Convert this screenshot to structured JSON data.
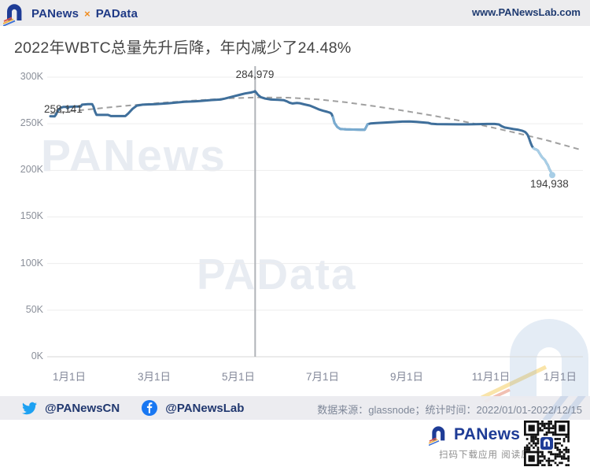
{
  "header": {
    "brand": {
      "primary": "PANews",
      "separator": "×",
      "secondary": "PAData"
    },
    "url": "www.PANewsLab.com"
  },
  "main": {
    "title": "2022年WBTC总量先升后降，年内减少了24.48%"
  },
  "watermarks": {
    "text1": "PANews",
    "text2": "PAData"
  },
  "chart_data": {
    "type": "line",
    "title": "2022年WBTC总量先升后降，年内减少了24.48%",
    "unit": "K WBTC",
    "ylim": [
      0,
      300
    ],
    "grid": true,
    "x_tick_labels": [
      "1月1日",
      "3月1日",
      "5月1日",
      "7月1日",
      "9月1日",
      "11月1日",
      "1月1日"
    ],
    "y_ticks": [
      {
        "label": "300K",
        "value": 300
      },
      {
        "label": "250K",
        "value": 250
      },
      {
        "label": "200K",
        "value": 200
      },
      {
        "label": "150K",
        "value": 150
      },
      {
        "label": "100K",
        "value": 100
      },
      {
        "label": "50K",
        "value": 50
      },
      {
        "label": "0K",
        "value": 0
      }
    ],
    "annotations": [
      {
        "id": "start",
        "label": "258,141",
        "value": 258141
      },
      {
        "id": "peak",
        "label": "284,979",
        "value": 284979
      },
      {
        "id": "end",
        "label": "194,938",
        "value": 194938
      }
    ],
    "marker_day": 142,
    "series": [
      {
        "name": "WBTC总量",
        "x_unit": "day-of-year-2022",
        "points": [
          [
            0,
            258.1
          ],
          [
            3,
            258
          ],
          [
            4,
            260
          ],
          [
            5,
            263.5
          ],
          [
            7,
            267
          ],
          [
            9,
            268
          ],
          [
            11,
            268
          ],
          [
            12,
            266.5
          ],
          [
            13,
            268
          ],
          [
            17,
            268.5
          ],
          [
            21,
            268.5
          ],
          [
            22,
            270.5
          ],
          [
            26,
            271
          ],
          [
            29,
            271
          ],
          [
            30,
            268
          ],
          [
            31,
            263
          ],
          [
            32,
            259.5
          ],
          [
            40,
            259.5
          ],
          [
            42,
            258.2
          ],
          [
            52,
            258.2
          ],
          [
            54,
            261
          ],
          [
            57,
            266
          ],
          [
            60,
            269.5
          ],
          [
            64,
            270.5
          ],
          [
            73,
            271
          ],
          [
            82,
            272
          ],
          [
            93,
            273.5
          ],
          [
            100,
            274
          ],
          [
            104,
            274.5
          ],
          [
            112,
            275.5
          ],
          [
            118,
            276
          ],
          [
            121,
            277
          ],
          [
            126,
            279
          ],
          [
            131,
            281
          ],
          [
            135,
            282.5
          ],
          [
            139,
            283.5
          ],
          [
            141,
            284.3
          ],
          [
            142,
            284.979
          ],
          [
            143,
            283
          ],
          [
            144,
            281
          ],
          [
            146,
            278.5
          ],
          [
            149,
            277
          ],
          [
            153,
            276
          ],
          [
            158,
            275.7
          ],
          [
            162,
            275.2
          ],
          [
            164,
            274
          ],
          [
            166,
            272.5
          ],
          [
            168,
            271.8
          ],
          [
            171,
            272.3
          ],
          [
            173,
            272
          ],
          [
            176,
            270.8
          ],
          [
            180,
            269.5
          ],
          [
            183,
            267.5
          ],
          [
            186,
            265.5
          ],
          [
            189,
            264
          ],
          [
            192,
            262.8
          ],
          [
            194,
            261.8
          ],
          [
            195,
            260.5
          ],
          [
            196,
            257
          ],
          [
            197,
            251
          ],
          [
            199,
            246.5
          ],
          [
            201,
            244.5
          ],
          [
            205,
            244
          ],
          [
            210,
            243.8
          ],
          [
            215,
            243.6
          ],
          [
            218,
            243.6
          ],
          [
            219,
            246.5
          ],
          [
            220,
            249.5
          ],
          [
            222,
            250.3
          ],
          [
            226,
            250.8
          ],
          [
            232,
            251.3
          ],
          [
            238,
            251.8
          ],
          [
            244,
            252.3
          ],
          [
            249,
            252.4
          ],
          [
            254,
            252
          ],
          [
            257,
            251.6
          ],
          [
            262,
            251
          ],
          [
            264,
            250
          ],
          [
            268,
            249.6
          ],
          [
            275,
            249.5
          ],
          [
            283,
            249.4
          ],
          [
            290,
            249.4
          ],
          [
            297,
            249.6
          ],
          [
            303,
            249.8
          ],
          [
            308,
            249.8
          ],
          [
            311,
            249.3
          ],
          [
            313,
            247.3
          ],
          [
            315,
            246
          ],
          [
            318,
            245.2
          ],
          [
            321,
            244.3
          ],
          [
            324,
            243.7
          ],
          [
            327,
            242.6
          ],
          [
            329,
            241.3
          ],
          [
            330,
            240
          ],
          [
            331,
            238
          ],
          [
            332,
            234
          ],
          [
            333,
            229.5
          ],
          [
            334,
            226
          ],
          [
            335,
            223.8
          ],
          [
            336,
            222.8
          ],
          [
            337,
            222.3
          ],
          [
            338,
            221.3
          ],
          [
            339,
            218.8
          ],
          [
            340,
            216.3
          ],
          [
            341,
            214
          ],
          [
            342,
            212.5
          ],
          [
            343,
            211
          ],
          [
            344,
            208
          ],
          [
            345,
            205.5
          ],
          [
            346,
            201.5
          ],
          [
            347,
            198.5
          ],
          [
            348,
            194.938
          ]
        ]
      }
    ],
    "trend_line": {
      "style": "dashed",
      "points": [
        [
          0,
          261
        ],
        [
          25,
          265.2
        ],
        [
          50,
          269
        ],
        [
          75,
          272.3
        ],
        [
          100,
          275
        ],
        [
          125,
          277.3
        ],
        [
          145,
          278.3
        ],
        [
          165,
          278
        ],
        [
          185,
          276.2
        ],
        [
          205,
          273
        ],
        [
          225,
          268.8
        ],
        [
          245,
          264
        ],
        [
          265,
          258.8
        ],
        [
          285,
          253
        ],
        [
          305,
          246.5
        ],
        [
          325,
          239.5
        ],
        [
          345,
          232
        ],
        [
          368,
          222
        ]
      ]
    },
    "light_segments": {
      "dip": [
        196,
        220
      ],
      "tail": [
        335,
        348
      ]
    },
    "colors": {
      "line": "#3f6f9b",
      "light": "#79abd0",
      "tail": "#a8cee6",
      "trend": "#9b9b9b",
      "marker": "#b0b3b8",
      "grid": "#ededed",
      "axis": "#d7d7d7"
    }
  },
  "footer": {
    "social": [
      {
        "platform": "twitter",
        "handle": "@PANewsCN"
      },
      {
        "platform": "facebook",
        "handle": "@PANewsLab"
      }
    ],
    "source_text": "数据来源：glassnode；统计时间：2022/01/01-2022/12/15"
  },
  "bottom": {
    "brand": "PANews",
    "tagline": "扫码下载应用 阅读原文"
  },
  "colors": {
    "brand_blue": "#1e3c96",
    "twitter": "#1da1f2",
    "facebook": "#1877f2",
    "accent_orange": "#f08c1e"
  }
}
